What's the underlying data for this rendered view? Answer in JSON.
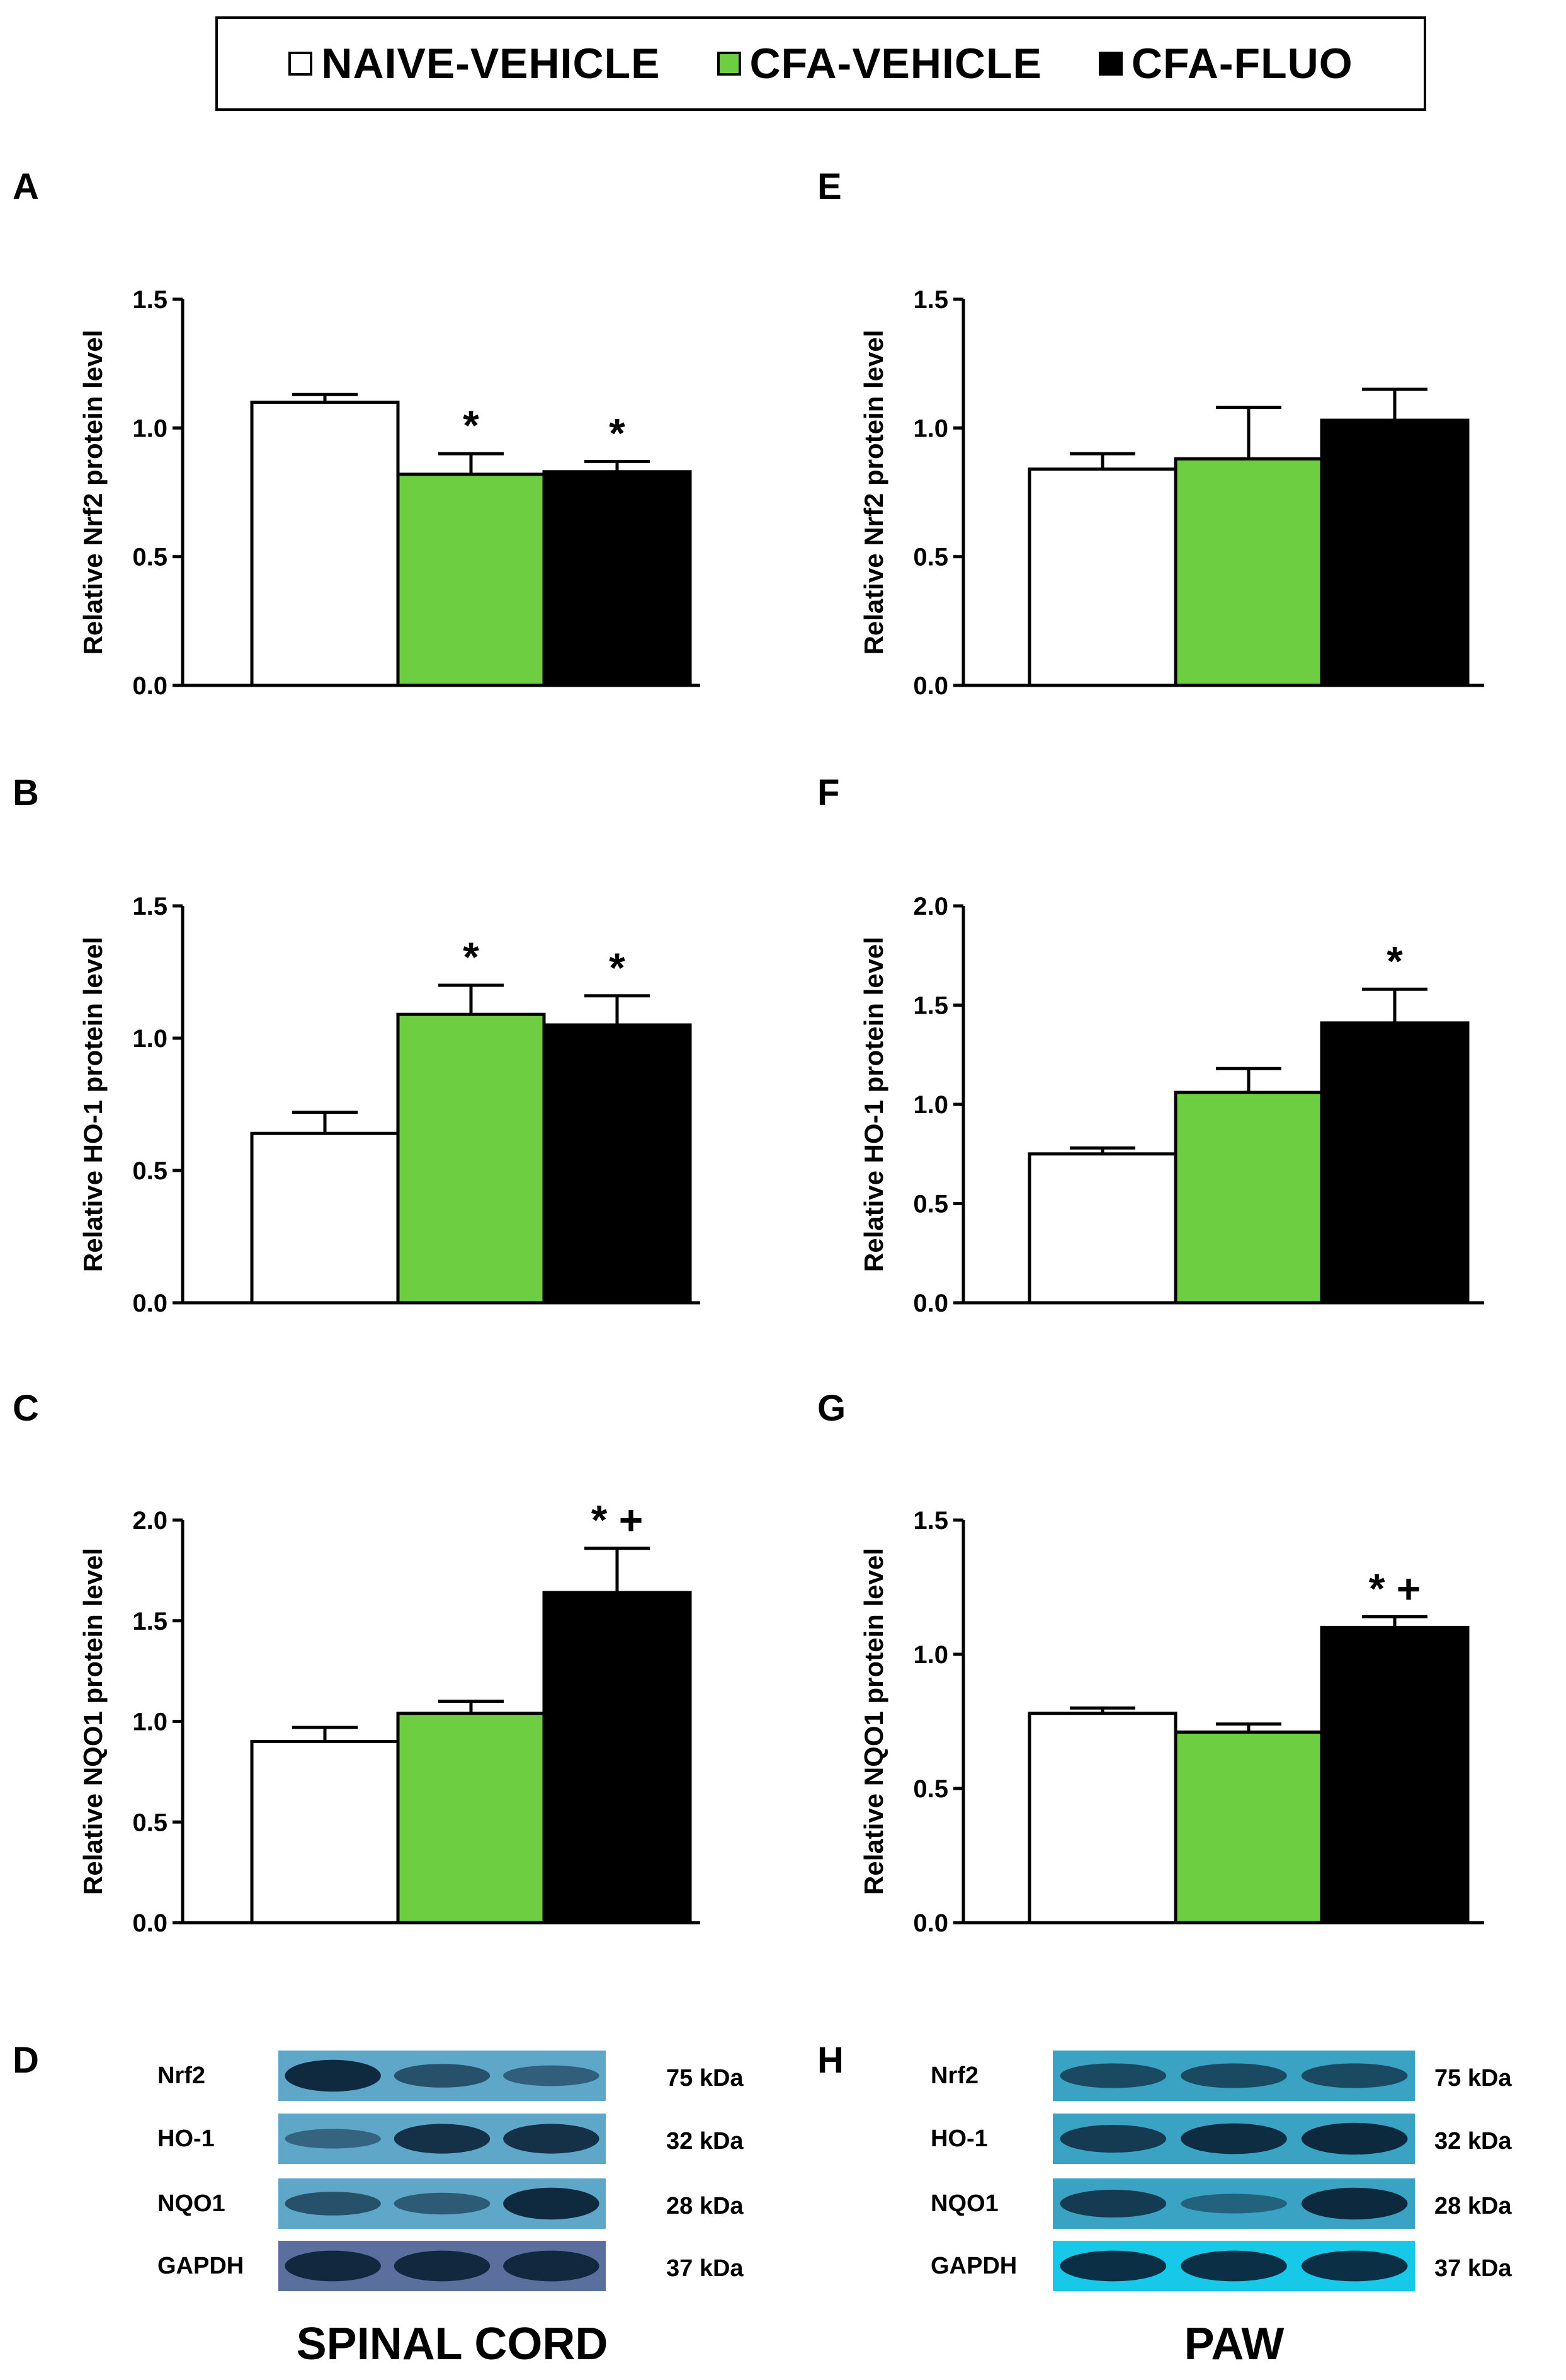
{
  "legend": {
    "entries": [
      {
        "label": "NAIVE-VEHICLE",
        "color": "#ffffff"
      },
      {
        "label": "CFA-VEHICLE",
        "color": "#6dce42"
      },
      {
        "label": "CFA-FLUO",
        "color": "#000000"
      }
    ]
  },
  "chart_data": [
    {
      "panel": "A",
      "type": "bar",
      "title": "",
      "categories": [
        "NAIVE-VEHICLE",
        "CFA-VEHICLE",
        "CFA-FLUO"
      ],
      "values": [
        1.1,
        0.82,
        0.83
      ],
      "errors": [
        0.03,
        0.08,
        0.04
      ],
      "annotations": [
        "",
        "*",
        "*"
      ],
      "ylabel": "Relative Nrf2 protein level",
      "ylim": [
        0,
        1.5
      ],
      "yticks": [
        "0.0",
        "0.5",
        "1.0",
        "1.5"
      ],
      "tissue": "spinal cord"
    },
    {
      "panel": "B",
      "type": "bar",
      "title": "",
      "categories": [
        "NAIVE-VEHICLE",
        "CFA-VEHICLE",
        "CFA-FLUO"
      ],
      "values": [
        0.64,
        1.09,
        1.05
      ],
      "errors": [
        0.08,
        0.11,
        0.11
      ],
      "annotations": [
        "",
        "*",
        "*"
      ],
      "ylabel": "Relative HO-1 protein level",
      "ylim": [
        0,
        1.5
      ],
      "yticks": [
        "0.0",
        "0.5",
        "1.0",
        "1.5"
      ],
      "tissue": "spinal cord"
    },
    {
      "panel": "C",
      "type": "bar",
      "title": "",
      "categories": [
        "NAIVE-VEHICLE",
        "CFA-VEHICLE",
        "CFA-FLUO"
      ],
      "values": [
        0.9,
        1.04,
        1.64
      ],
      "errors": [
        0.07,
        0.06,
        0.22
      ],
      "annotations": [
        "",
        "",
        "* +"
      ],
      "ylabel": "Relative NQO1 protein level",
      "ylim": [
        0,
        2.0
      ],
      "yticks": [
        "0.0",
        "0.5",
        "1.0",
        "1.5",
        "2.0"
      ],
      "tissue": "spinal cord"
    },
    {
      "panel": "E",
      "type": "bar",
      "title": "",
      "categories": [
        "NAIVE-VEHICLE",
        "CFA-VEHICLE",
        "CFA-FLUO"
      ],
      "values": [
        0.84,
        0.88,
        1.03
      ],
      "errors": [
        0.06,
        0.2,
        0.12
      ],
      "annotations": [
        "",
        "",
        ""
      ],
      "ylabel": "Relative Nrf2 protein level",
      "ylim": [
        0,
        1.5
      ],
      "yticks": [
        "0.0",
        "0.5",
        "1.0",
        "1.5"
      ],
      "tissue": "paw"
    },
    {
      "panel": "F",
      "type": "bar",
      "title": "",
      "categories": [
        "NAIVE-VEHICLE",
        "CFA-VEHICLE",
        "CFA-FLUO"
      ],
      "values": [
        0.75,
        1.06,
        1.41
      ],
      "errors": [
        0.03,
        0.12,
        0.17
      ],
      "annotations": [
        "",
        "",
        "*"
      ],
      "ylabel": "Relative HO-1 protein level",
      "ylim": [
        0,
        2.0
      ],
      "yticks": [
        "0.0",
        "0.5",
        "1.0",
        "1.5",
        "2.0"
      ],
      "tissue": "paw"
    },
    {
      "panel": "G",
      "type": "bar",
      "title": "",
      "categories": [
        "NAIVE-VEHICLE",
        "CFA-VEHICLE",
        "CFA-FLUO"
      ],
      "values": [
        0.78,
        0.71,
        1.1
      ],
      "errors": [
        0.02,
        0.03,
        0.04
      ],
      "annotations": [
        "",
        "",
        "* +"
      ],
      "ylabel": "Relative NQO1 protein level",
      "ylim": [
        0,
        1.5
      ],
      "yticks": [
        "0.0",
        "0.5",
        "1.0",
        "1.5"
      ],
      "tissue": "paw"
    }
  ],
  "blots": [
    {
      "panel": "D",
      "title": "SPINAL CORD",
      "rows": [
        {
          "protein": "Nrf2",
          "weight": "75 kDa",
          "intensity": [
            0.95,
            0.55,
            0.4
          ]
        },
        {
          "protein": "HO-1",
          "weight": "32 kDa",
          "intensity": [
            0.35,
            0.85,
            0.85
          ]
        },
        {
          "protein": "NQO1",
          "weight": "28 kDa",
          "intensity": [
            0.55,
            0.45,
            0.95
          ]
        },
        {
          "protein": "GAPDH",
          "weight": "37 kDa",
          "intensity": [
            0.9,
            0.9,
            0.9
          ]
        }
      ]
    },
    {
      "panel": "H",
      "title": "PAW",
      "rows": [
        {
          "protein": "Nrf2",
          "weight": "75 kDa",
          "intensity": [
            0.6,
            0.6,
            0.6
          ]
        },
        {
          "protein": "HO-1",
          "weight": "32 kDa",
          "intensity": [
            0.75,
            0.9,
            0.95
          ]
        },
        {
          "protein": "NQO1",
          "weight": "28 kDa",
          "intensity": [
            0.75,
            0.35,
            0.95
          ]
        },
        {
          "protein": "GAPDH",
          "weight": "37 kDa",
          "intensity": [
            0.9,
            0.9,
            0.9
          ]
        }
      ]
    }
  ]
}
